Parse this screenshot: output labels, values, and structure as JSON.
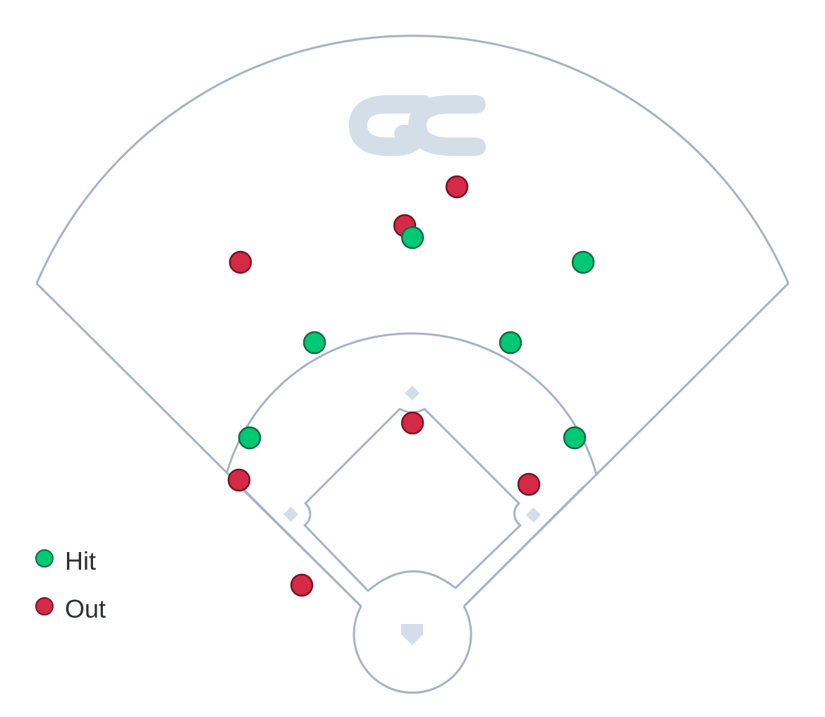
{
  "logo_text": "GC",
  "colors": {
    "hit_fill": "#00c875",
    "hit_stroke": "#0d6b3f",
    "out_fill": "#d42a45",
    "out_stroke": "#7a1222",
    "field_line": "#a3b4c6",
    "base_fill": "#d3deea",
    "logo": "#d3dee9"
  },
  "legend": {
    "hit_label": "Hit",
    "out_label": "Out"
  },
  "hits": [
    {
      "type": "hit"
    },
    {
      "type": "hit"
    },
    {
      "type": "hit"
    },
    {
      "type": "hit"
    },
    {
      "type": "hit"
    },
    {
      "type": "hit"
    },
    {
      "type": "hit"
    }
  ],
  "outs": [
    {
      "type": "out"
    },
    {
      "type": "out"
    },
    {
      "type": "out"
    },
    {
      "type": "out"
    },
    {
      "type": "out"
    },
    {
      "type": "out"
    },
    {
      "type": "out"
    }
  ]
}
